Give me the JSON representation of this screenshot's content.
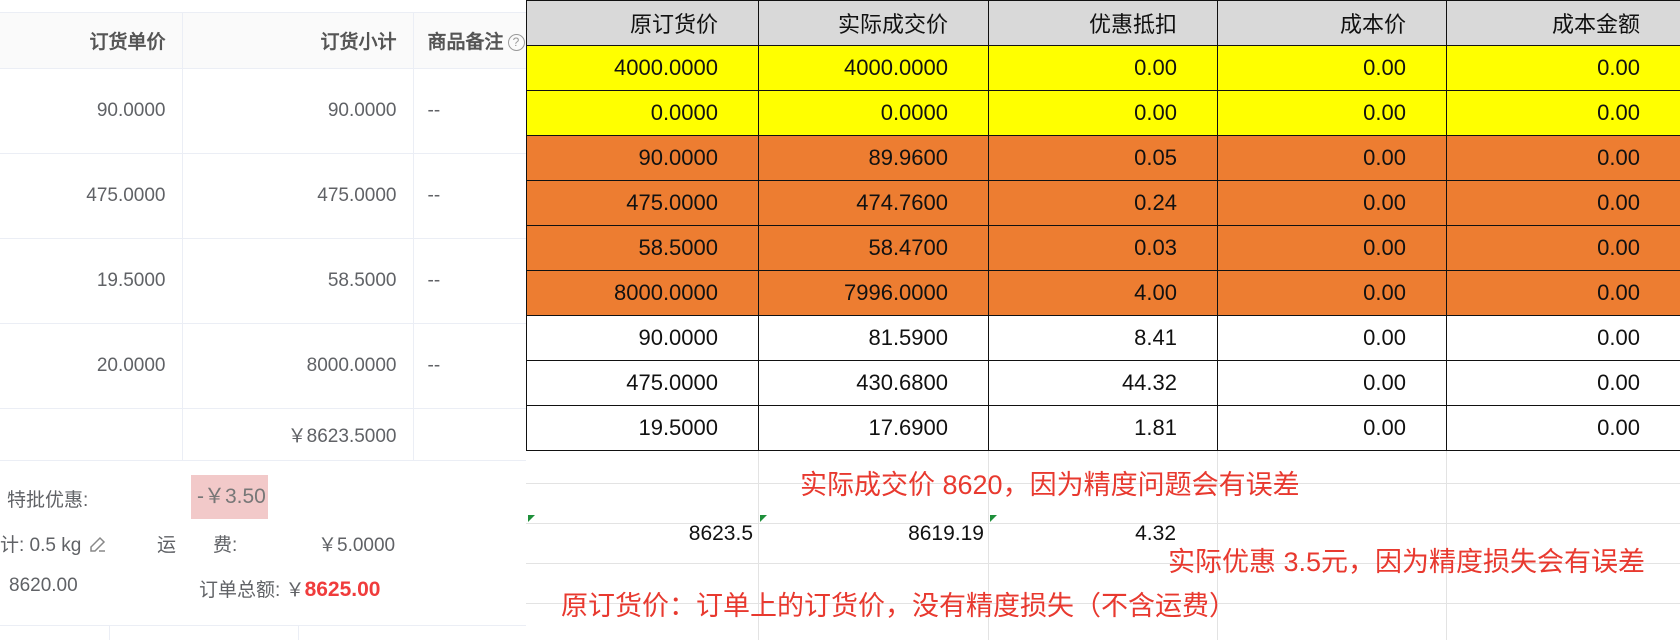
{
  "left": {
    "headers": {
      "unit_price": "订货单价",
      "subtotal": "订货小计",
      "remark": "商品备注"
    },
    "help_icon_glyph": "?",
    "rows": [
      {
        "unit_price": "90.0000",
        "subtotal": "90.0000",
        "remark": "--"
      },
      {
        "unit_price": "475.0000",
        "subtotal": "475.0000",
        "remark": "--"
      },
      {
        "unit_price": "19.5000",
        "subtotal": "58.5000",
        "remark": "--"
      },
      {
        "unit_price": "20.0000",
        "subtotal": "8000.0000",
        "remark": "--"
      }
    ],
    "table_total": "￥8623.5000",
    "special_discount_label": "特批优惠:",
    "special_discount_value": "-￥3.50",
    "weight_text": "计: 0.5 kg",
    "shipping_label_a": "运",
    "shipping_label_b": "费:",
    "shipping_value": "￥5.0000",
    "deal_amount": "8620.00",
    "order_total_label": "订单总额: ￥",
    "order_total_value": "8625.00"
  },
  "sheet": {
    "headers": [
      "原订货价",
      "实际成交价",
      "优惠抵扣",
      "成本价",
      "成本金额"
    ],
    "yellow_rows": [
      [
        "4000.0000",
        "4000.0000",
        "0.00",
        "0.00",
        "0.00"
      ],
      [
        "0.0000",
        "0.0000",
        "0.00",
        "0.00",
        "0.00"
      ]
    ],
    "orange_rows": [
      [
        "90.0000",
        "89.9600",
        "0.05",
        "0.00",
        "0.00"
      ],
      [
        "475.0000",
        "474.7600",
        "0.24",
        "0.00",
        "0.00"
      ],
      [
        "58.5000",
        "58.4700",
        "0.03",
        "0.00",
        "0.00"
      ],
      [
        "8000.0000",
        "7996.0000",
        "4.00",
        "0.00",
        "0.00"
      ]
    ],
    "white_rows": [
      [
        "90.0000",
        "81.5900",
        "8.41",
        "0.00",
        "0.00"
      ],
      [
        "475.0000",
        "430.6800",
        "44.32",
        "0.00",
        "0.00"
      ],
      [
        "19.5000",
        "17.6900",
        "1.81",
        "0.00",
        "0.00"
      ]
    ],
    "sums": [
      "8623.5",
      "8619.19",
      "4.32"
    ],
    "notes": {
      "actual_price": "实际成交价 8620，因为精度问题会有误差",
      "actual_discount": "实际优惠 3.5元，因为精度损失会有误差",
      "original_price": "原订货价：订单上的订货价，没有精度损失（不含运费）"
    },
    "colors": {
      "yellow": "#ffff00",
      "orange": "#ed7d31",
      "note_red": "#e8392f",
      "header_gray": "#d9d9d9"
    }
  }
}
